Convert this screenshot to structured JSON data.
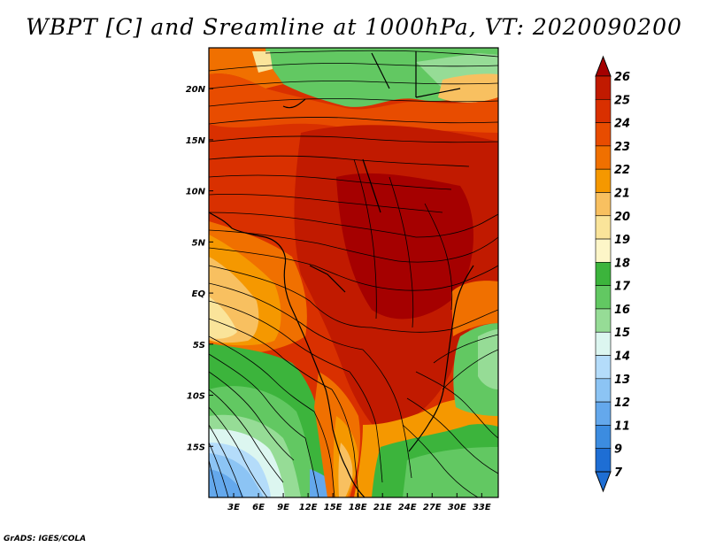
{
  "title": "WBPT [C] and Sreamline at 1000hPa, VT: 2020090200",
  "credit": "GrADS: IGES/COLA",
  "map": {
    "lon_range": [
      0,
      35
    ],
    "lat_range": [
      -20,
      24
    ],
    "lon_ticks": [
      "3E",
      "6E",
      "9E",
      "12E",
      "15E",
      "18E",
      "21E",
      "24E",
      "27E",
      "30E",
      "33E"
    ],
    "lon_tick_values": [
      3,
      6,
      9,
      12,
      15,
      18,
      21,
      24,
      27,
      30,
      33
    ],
    "lat_ticks": [
      "20N",
      "15N",
      "10N",
      "5N",
      "EQ",
      "5S",
      "10S",
      "15S"
    ],
    "lat_tick_values": [
      20,
      15,
      10,
      5,
      0,
      -5,
      -10,
      -15
    ]
  },
  "colorbar": {
    "levels": [
      "26",
      "25",
      "24",
      "23",
      "22",
      "21",
      "20",
      "19",
      "18",
      "17",
      "16",
      "15",
      "14",
      "13",
      "12",
      "11",
      "9",
      "7"
    ],
    "colors": [
      "#a50000",
      "#c11a00",
      "#d93000",
      "#e84c00",
      "#f07000",
      "#f59800",
      "#f8c060",
      "#fae49a",
      "#fdf6c8",
      "#3cb43c",
      "#62c862",
      "#96dc96",
      "#dcf6f0",
      "#b4dcfa",
      "#8cc4f4",
      "#64a8ec",
      "#3c8ce0",
      "#1e6ed4"
    ]
  }
}
